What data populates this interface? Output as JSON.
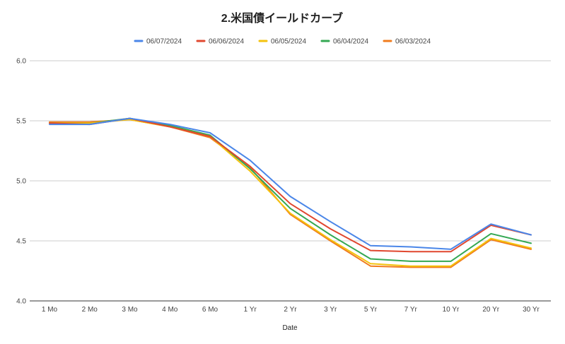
{
  "chart_data": {
    "type": "line",
    "title": "2.米国債イールドカーブ",
    "xlabel": "Date",
    "ylabel": "",
    "ylim": [
      4.0,
      6.0
    ],
    "yticks": [
      "4.0",
      "4.5",
      "5.0",
      "5.5",
      "6.0"
    ],
    "grid": true,
    "legend_position": "top",
    "categories": [
      "1 Mo",
      "2 Mo",
      "3 Mo",
      "4 Mo",
      "6 Mo",
      "1 Yr",
      "2 Yr",
      "3 Yr",
      "5 Yr",
      "7 Yr",
      "10 Yr",
      "20 Yr",
      "30 Yr"
    ],
    "series": [
      {
        "name": "06/07/2024",
        "color": "#4a86e8",
        "values": [
          5.47,
          5.47,
          5.52,
          5.47,
          5.4,
          5.17,
          4.87,
          4.66,
          4.46,
          4.45,
          4.43,
          4.64,
          4.55
        ]
      },
      {
        "name": "06/06/2024",
        "color": "#e0472f",
        "values": [
          5.48,
          5.47,
          5.52,
          5.45,
          5.37,
          5.12,
          4.81,
          4.6,
          4.42,
          4.41,
          4.41,
          4.63,
          4.55
        ]
      },
      {
        "name": "06/05/2024",
        "color": "#f4c20d",
        "values": [
          5.48,
          5.48,
          5.51,
          5.45,
          5.37,
          5.08,
          4.73,
          4.51,
          4.31,
          4.29,
          4.29,
          4.52,
          4.44
        ]
      },
      {
        "name": "06/04/2024",
        "color": "#34a853",
        "values": [
          5.48,
          5.48,
          5.52,
          5.46,
          5.38,
          5.1,
          4.77,
          4.55,
          4.35,
          4.33,
          4.33,
          4.56,
          4.48
        ]
      },
      {
        "name": "06/03/2024",
        "color": "#f07b1d",
        "values": [
          5.49,
          5.49,
          5.51,
          5.45,
          5.36,
          5.11,
          4.72,
          4.5,
          4.29,
          4.28,
          4.28,
          4.51,
          4.43
        ]
      }
    ]
  }
}
